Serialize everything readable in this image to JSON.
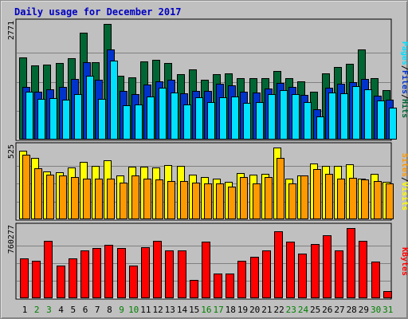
{
  "title": "Daily usage for December 2017",
  "colors": {
    "frame_bg": "#c0c0c0",
    "title": "#0000c0",
    "hits": "#006633",
    "files": "#0033cc",
    "pages": "#00e0ff",
    "visits": "#ffff00",
    "sites": "#ff9900",
    "kbytes": "#ff0000",
    "weekday_label": "#000000",
    "weekend_label": "#008000"
  },
  "chart_data": [
    {
      "type": "bar",
      "panel": "hits-files-pages",
      "series": [
        {
          "name": "Hits",
          "values": [
            1960,
            1770,
            1790,
            1830,
            1940,
            2570,
            1850,
            2771,
            1520,
            1500,
            1870,
            1910,
            1840,
            1560,
            1690,
            1440,
            1560,
            1580,
            1470,
            1470,
            1470,
            1650,
            1470,
            1400,
            1150,
            1590,
            1740,
            1820,
            2150,
            1480,
            1190
          ]
        },
        {
          "name": "Files",
          "values": [
            1270,
            1140,
            1200,
            1270,
            1460,
            1850,
            1430,
            2150,
            1170,
            1090,
            1320,
            1390,
            1430,
            1100,
            1160,
            1170,
            1330,
            1300,
            1140,
            1130,
            1220,
            1360,
            1270,
            1070,
            720,
            1240,
            1340,
            1380,
            1450,
            1050,
            950
          ]
        },
        {
          "name": "Pages",
          "values": [
            1150,
            970,
            990,
            950,
            1090,
            1530,
            980,
            1890,
            820,
            840,
            1030,
            1240,
            1130,
            840,
            1020,
            890,
            1020,
            1030,
            880,
            900,
            1080,
            1190,
            1090,
            890,
            560,
            1120,
            1100,
            1280,
            1200,
            940,
            770
          ]
        }
      ],
      "ymax": 2771,
      "ymax_label": "2771",
      "legend": [
        "Pages",
        "Files",
        "Hits"
      ]
    },
    {
      "type": "bar",
      "panel": "visits-sites",
      "series": [
        {
          "name": "Visits",
          "values": [
            500,
            450,
            350,
            345,
            380,
            420,
            390,
            430,
            320,
            385,
            385,
            380,
            396,
            393,
            325,
            310,
            300,
            275,
            340,
            325,
            330,
            525,
            300,
            320,
            410,
            390,
            390,
            400,
            300,
            334,
            275
          ]
        },
        {
          "name": "Sites",
          "values": [
            475,
            375,
            325,
            320,
            310,
            300,
            300,
            300,
            270,
            320,
            300,
            290,
            280,
            280,
            270,
            260,
            260,
            240,
            310,
            260,
            310,
            450,
            260,
            320,
            370,
            330,
            300,
            305,
            290,
            280,
            260
          ]
        }
      ],
      "ymax": 525,
      "ymax_label": "525",
      "legend": [
        "Sites",
        "Visits"
      ]
    },
    {
      "type": "bar",
      "panel": "kbytes",
      "series": [
        {
          "name": "KBytes",
          "values": [
            433000,
            406000,
            625000,
            357000,
            433000,
            515000,
            543000,
            581000,
            548000,
            357000,
            553000,
            625000,
            515000,
            515000,
            196000,
            615000,
            270000,
            270000,
            407000,
            450000,
            515000,
            725000,
            615000,
            486000,
            587000,
            686000,
            515000,
            760277,
            625000,
            401000,
            79000
          ]
        }
      ],
      "ymax": 760277,
      "ymax_label": "760277",
      "legend": [
        "KBytes"
      ]
    }
  ],
  "days": [
    "1",
    "2",
    "3",
    "4",
    "5",
    "6",
    "7",
    "8",
    "9",
    "10",
    "11",
    "12",
    "13",
    "14",
    "15",
    "16",
    "17",
    "18",
    "19",
    "20",
    "21",
    "22",
    "23",
    "24",
    "25",
    "26",
    "27",
    "28",
    "29",
    "30",
    "31"
  ],
  "weekend_days": [
    "2",
    "3",
    "9",
    "10",
    "16",
    "17",
    "23",
    "24",
    "30",
    "31"
  ]
}
